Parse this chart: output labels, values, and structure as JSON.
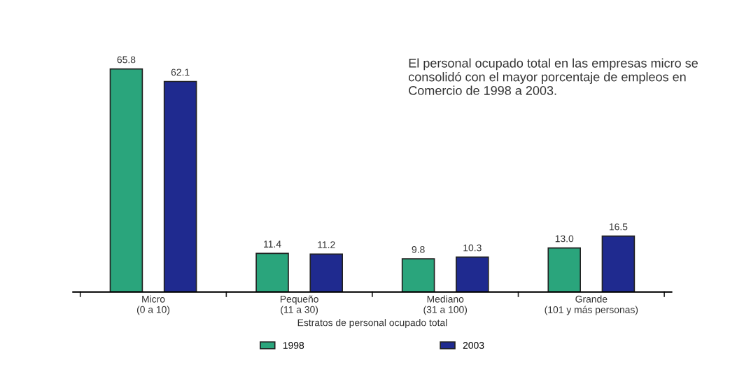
{
  "chart_data": {
    "type": "bar",
    "categories": [
      "Micro\n(0 a 10)",
      "Pequeño\n(11 a 30)",
      "Mediano\n(31 a 100)",
      "Grande\n(101 y más personas)"
    ],
    "xlabel": "Estratos de personal ocupado total",
    "series": [
      {
        "name": "1998",
        "color": "#2aa57c",
        "values": [
          65.8,
          11.4,
          9.8,
          13.0
        ],
        "value_labels": [
          "65.8",
          "11.4",
          "9.8",
          "13.0"
        ]
      },
      {
        "name": "2003",
        "color": "#1f2a8f",
        "values": [
          62.1,
          11.2,
          10.3,
          16.5
        ],
        "value_labels": [
          "62.1",
          "11.2",
          "10.3",
          "16.5"
        ]
      }
    ],
    "legend": "bottom",
    "grid": false,
    "annotations": [
      "El personal ocupado total en las empresas micro se consolidó con el mayor porcentaje de empleos en Comercio de 1998 a 2003."
    ]
  }
}
